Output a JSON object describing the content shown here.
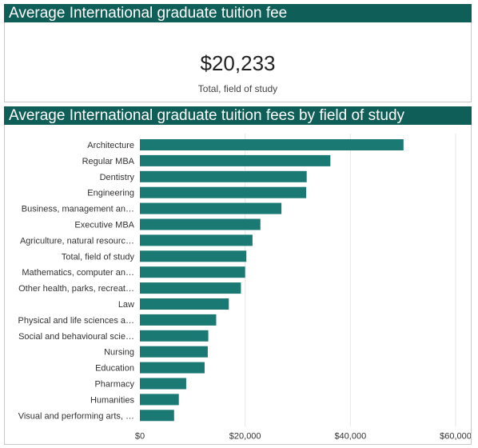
{
  "kpi": {
    "title": "Average International graduate tuition fee",
    "value": "$20,233",
    "label": "Total, field of study"
  },
  "chart_panel": {
    "title": "Average International graduate tuition fees by field of study"
  },
  "colors": {
    "header": "#0f5f58",
    "bar": "#1a7a73",
    "grid": "#e6e6e6"
  },
  "chart_data": {
    "type": "bar",
    "orientation": "horizontal",
    "title": "Average International graduate tuition fees by field of study",
    "categories": [
      "Architecture",
      "Regular MBA",
      "Dentistry",
      "Engineering",
      "Business, management an…",
      "Executive MBA",
      "Agriculture, natural resourc…",
      "Total, field of study",
      "Mathematics, computer an…",
      "Other health, parks, recreat…",
      "Law",
      "Physical and life sciences a…",
      "Social and behavioural scie…",
      "Nursing",
      "Education",
      "Pharmacy",
      "Humanities",
      "Visual and performing arts, …"
    ],
    "values": [
      50100,
      36200,
      31700,
      31600,
      26900,
      22900,
      21400,
      20233,
      20000,
      19200,
      16900,
      14500,
      13000,
      12900,
      12300,
      8800,
      7400,
      6500
    ],
    "xlim": [
      0,
      60000
    ],
    "xticks": [
      "$0",
      "$20,000",
      "$40,000",
      "$60,000"
    ],
    "xtick_values": [
      0,
      20000,
      40000,
      60000
    ],
    "grid": true,
    "legend": "none"
  }
}
